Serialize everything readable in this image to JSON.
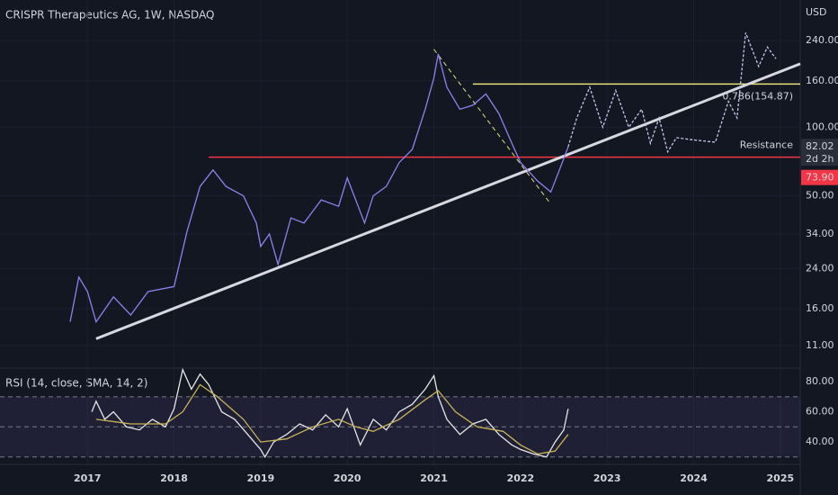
{
  "chart_data": [
    {
      "type": "line",
      "title": "CRISPR Therapeutics AG, 1W, NASDAQ",
      "currency": "USD",
      "log_scale": true,
      "grid": true,
      "xlim": [
        2015.99,
        2025.23
      ],
      "ylim": [
        8.85,
        362
      ],
      "xticks": [
        2017,
        2018,
        2019,
        2020,
        2021,
        2022,
        2023,
        2024,
        2025
      ],
      "yticks": [
        {
          "value": 11,
          "label": "11.00"
        },
        {
          "value": 16,
          "label": "16.00"
        },
        {
          "value": 24,
          "label": "24.00"
        },
        {
          "value": 34,
          "label": "34.00"
        },
        {
          "value": 50,
          "label": "50.00"
        },
        {
          "value": 100,
          "label": "100.00"
        },
        {
          "value": 160,
          "label": "160.00"
        },
        {
          "value": 240,
          "label": "240.00"
        }
      ],
      "series": [
        {
          "color": "#8f80f0",
          "x": [
            2016.8,
            2016.9,
            2017.0,
            2017.1,
            2017.3,
            2017.5,
            2017.7,
            2018.0,
            2018.15,
            2018.3,
            2018.45,
            2018.6,
            2018.8,
            2018.95,
            2019.0,
            2019.1,
            2019.2,
            2019.35,
            2019.5,
            2019.7,
            2019.9,
            2020.0,
            2020.2,
            2020.3,
            2020.45,
            2020.6,
            2020.75,
            2020.9,
            2021.0,
            2021.05,
            2021.15,
            2021.3,
            2021.45,
            2021.6,
            2021.75,
            2021.9,
            2022.0,
            2022.2,
            2022.35,
            2022.45,
            2022.55
          ],
          "values": [
            14,
            22,
            19,
            14,
            18,
            15,
            19,
            20,
            35,
            55,
            65,
            55,
            50,
            38,
            30,
            34,
            25,
            40,
            38,
            48,
            45,
            60,
            38,
            50,
            55,
            70,
            80,
            120,
            165,
            210,
            150,
            120,
            125,
            140,
            115,
            85,
            70,
            58,
            52,
            65,
            82.02
          ]
        },
        {
          "color": "#c9c4ee",
          "dashed": true,
          "x": [
            2022.55,
            2022.65,
            2022.8,
            2022.95,
            2023.1,
            2023.25,
            2023.4,
            2023.5,
            2023.6,
            2023.7,
            2023.8,
            2024.0,
            2024.25,
            2024.4,
            2024.5,
            2024.6,
            2024.75,
            2024.85,
            2024.95
          ],
          "values": [
            82.02,
            110,
            150,
            100,
            145,
            100,
            120,
            85,
            110,
            78,
            90,
            88,
            86,
            130,
            110,
            260,
            185,
            225,
            200
          ]
        }
      ],
      "hlines": [
        {
          "value": 73.9,
          "x_start": 2018.4,
          "color": "#f23645",
          "label": "Resistance"
        },
        {
          "value": 154.87,
          "x_start": 2021.45,
          "color": "#e8e07a",
          "label": "0.786(154.87)"
        }
      ],
      "segments": [
        {
          "x": [
            2017.1,
            2025.23
          ],
          "values": [
            11.8,
            190
          ],
          "color": "#d8d8e0",
          "width": 3
        },
        {
          "x": [
            2021.0,
            2022.35
          ],
          "values": [
            220,
            46
          ],
          "color": "#e8e07a",
          "width": 1,
          "dashed": true
        }
      ],
      "last_price": 82.02,
      "countdown": "2d 2h",
      "level_label": {
        "value": 73.9,
        "label": "73.90"
      }
    },
    {
      "type": "line",
      "title": "RSI (14, close, SMA, 14, 2)",
      "xlim": [
        2015.99,
        2025.23
      ],
      "ylim": [
        25.7,
        88.4
      ],
      "yticks": [
        {
          "value": 40,
          "label": "40.00"
        },
        {
          "value": 60,
          "label": "60.00"
        },
        {
          "value": 80,
          "label": "80.00"
        }
      ],
      "levels": [
        70,
        50,
        30
      ],
      "series": [
        {
          "color": "#e6e6e6",
          "x": [
            2017.05,
            2017.1,
            2017.2,
            2017.3,
            2017.45,
            2017.6,
            2017.75,
            2017.9,
            2018.0,
            2018.1,
            2018.2,
            2018.3,
            2018.4,
            2018.55,
            2018.7,
            2018.85,
            2019.0,
            2019.05,
            2019.15,
            2019.3,
            2019.45,
            2019.6,
            2019.75,
            2019.9,
            2020.0,
            2020.15,
            2020.3,
            2020.45,
            2020.6,
            2020.75,
            2020.9,
            2021.0,
            2021.05,
            2021.15,
            2021.3,
            2021.45,
            2021.6,
            2021.75,
            2021.9,
            2022.0,
            2022.15,
            2022.3,
            2022.4,
            2022.5,
            2022.55
          ],
          "values": [
            60,
            67,
            55,
            60,
            50,
            48,
            55,
            50,
            62,
            88,
            75,
            85,
            78,
            60,
            55,
            45,
            35,
            30,
            40,
            45,
            52,
            48,
            58,
            50,
            62,
            38,
            55,
            48,
            60,
            65,
            75,
            84,
            70,
            55,
            45,
            52,
            55,
            45,
            38,
            35,
            32,
            30,
            40,
            48,
            62
          ]
        },
        {
          "color": "#c9b458",
          "x": [
            2017.1,
            2017.5,
            2017.9,
            2018.1,
            2018.3,
            2018.5,
            2018.8,
            2019.0,
            2019.3,
            2019.6,
            2019.9,
            2020.1,
            2020.3,
            2020.6,
            2020.9,
            2021.05,
            2021.25,
            2021.5,
            2021.8,
            2022.0,
            2022.2,
            2022.4,
            2022.55
          ],
          "values": [
            55,
            52,
            52,
            60,
            78,
            70,
            55,
            40,
            42,
            50,
            55,
            50,
            47,
            55,
            68,
            74,
            60,
            50,
            47,
            38,
            32,
            34,
            45
          ]
        }
      ]
    }
  ]
}
